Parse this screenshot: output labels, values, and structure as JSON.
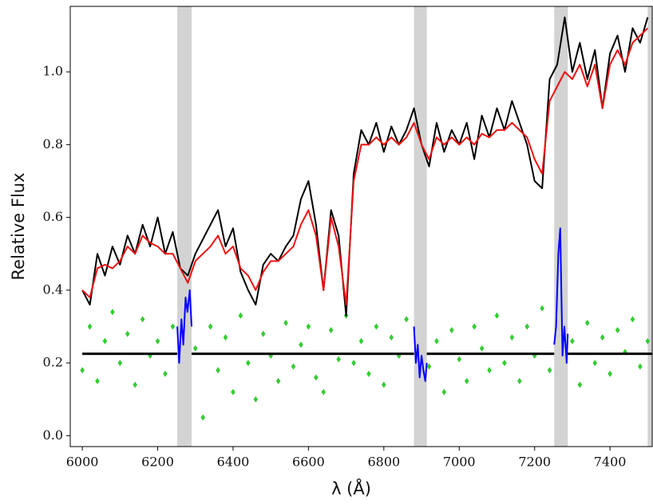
{
  "chart_data": {
    "type": "line",
    "xlabel": "λ (Å)",
    "ylabel": "Relative Flux",
    "xlim": [
      5968,
      7512
    ],
    "ylim": [
      -0.03,
      1.18
    ],
    "xticks": [
      6000,
      6200,
      6400,
      6600,
      6800,
      7000,
      7200,
      7400
    ],
    "yticks": [
      {
        "value": 0,
        "label": "0.0"
      },
      {
        "value": 0.2,
        "label": "0.2"
      },
      {
        "value": 0.4,
        "label": "0.4"
      },
      {
        "value": 0.6,
        "label": "0.6"
      },
      {
        "value": 0.8,
        "label": "0.8"
      },
      {
        "value": 1,
        "label": "1.0"
      }
    ],
    "shaded_regions": [
      [
        6252,
        6290
      ],
      [
        6880,
        6914
      ],
      [
        7252,
        7288
      ],
      [
        7500,
        7512
      ]
    ],
    "shade_color": "#d3d3d3",
    "x": [
      6000,
      6020,
      6040,
      6060,
      6080,
      6100,
      6120,
      6140,
      6160,
      6180,
      6200,
      6220,
      6240,
      6260,
      6280,
      6300,
      6320,
      6340,
      6360,
      6380,
      6400,
      6420,
      6440,
      6460,
      6480,
      6500,
      6520,
      6540,
      6560,
      6580,
      6600,
      6620,
      6640,
      6660,
      6680,
      6700,
      6720,
      6740,
      6760,
      6780,
      6800,
      6820,
      6840,
      6860,
      6880,
      6900,
      6920,
      6940,
      6960,
      6980,
      7000,
      7020,
      7040,
      7060,
      7080,
      7100,
      7120,
      7140,
      7160,
      7180,
      7200,
      7220,
      7240,
      7260,
      7280,
      7300,
      7320,
      7340,
      7360,
      7380,
      7400,
      7420,
      7440,
      7460,
      7480,
      7500
    ],
    "series": [
      {
        "style": "scatter",
        "color": "#33cc33",
        "values": [
          0.18,
          0.3,
          0.15,
          0.26,
          0.34,
          0.2,
          0.28,
          0.14,
          0.32,
          0.22,
          0.26,
          0.17,
          0.3,
          null,
          null,
          0.24,
          0.05,
          0.3,
          0.18,
          0.27,
          0.12,
          0.33,
          0.2,
          0.1,
          0.28,
          0.22,
          0.15,
          0.31,
          0.19,
          0.25,
          0.3,
          0.16,
          0.12,
          0.29,
          0.21,
          0.33,
          0.2,
          0.26,
          0.17,
          0.3,
          0.14,
          0.27,
          0.22,
          0.32,
          null,
          null,
          0.19,
          0.26,
          0.12,
          0.29,
          0.21,
          0.15,
          0.3,
          0.24,
          0.18,
          0.33,
          0.2,
          0.27,
          0.15,
          0.3,
          0.22,
          0.35,
          0.18,
          null,
          null,
          0.26,
          0.14,
          0.31,
          0.2,
          0.27,
          0.17,
          0.29,
          0.23,
          0.32,
          0.19,
          0.26
        ]
      },
      {
        "style": "line",
        "color": "#000000",
        "values": [
          0.4,
          0.36,
          0.5,
          0.44,
          0.52,
          0.47,
          0.55,
          0.5,
          0.58,
          0.52,
          0.6,
          0.5,
          0.56,
          0.46,
          0.44,
          0.5,
          0.54,
          0.58,
          0.62,
          0.52,
          0.57,
          0.45,
          0.4,
          0.36,
          0.47,
          0.5,
          0.48,
          0.52,
          0.55,
          0.65,
          0.7,
          0.58,
          0.4,
          0.62,
          0.55,
          0.33,
          0.72,
          0.84,
          0.8,
          0.86,
          0.78,
          0.85,
          0.8,
          0.84,
          0.9,
          0.8,
          0.74,
          0.86,
          0.78,
          0.84,
          0.8,
          0.86,
          0.76,
          0.88,
          0.82,
          0.9,
          0.84,
          0.92,
          0.86,
          0.8,
          0.7,
          0.68,
          0.98,
          1.02,
          1.15,
          1.0,
          1.08,
          0.98,
          1.06,
          0.9,
          1.05,
          1.1,
          1.0,
          1.12,
          1.08,
          1.15
        ]
      },
      {
        "style": "line",
        "color": "#ee1111",
        "values": [
          0.4,
          0.38,
          0.46,
          0.47,
          0.46,
          0.48,
          0.52,
          0.5,
          0.55,
          0.53,
          0.52,
          0.5,
          0.5,
          0.46,
          0.42,
          0.48,
          0.5,
          0.52,
          0.55,
          0.5,
          0.52,
          0.46,
          0.44,
          0.4,
          0.45,
          0.48,
          0.48,
          0.5,
          0.52,
          0.58,
          0.62,
          0.55,
          0.4,
          0.6,
          0.52,
          0.36,
          0.7,
          0.8,
          0.8,
          0.82,
          0.8,
          0.82,
          0.8,
          0.82,
          0.86,
          0.8,
          0.76,
          0.82,
          0.8,
          0.82,
          0.8,
          0.82,
          0.8,
          0.83,
          0.82,
          0.84,
          0.84,
          0.86,
          0.84,
          0.82,
          0.76,
          0.72,
          0.92,
          0.96,
          1.0,
          0.98,
          1.02,
          0.96,
          1.02,
          0.9,
          1.02,
          1.06,
          1.02,
          1.08,
          1.1,
          1.12
        ]
      },
      {
        "style": "line",
        "color": "#0000ff",
        "x": [
          6252,
          6257,
          6263,
          6268,
          6274,
          6279,
          6285,
          6290,
          6500,
          6880,
          6885,
          6890,
          6895,
          6900,
          6905,
          6910,
          6914,
          7100,
          7252,
          7257,
          7263,
          7268,
          7274,
          7279,
          7285,
          7288
        ],
        "values": [
          0.3,
          0.2,
          0.32,
          0.25,
          0.38,
          0.34,
          0.4,
          0.3,
          null,
          0.3,
          0.2,
          0.25,
          0.16,
          0.22,
          0.18,
          0.15,
          0.2,
          null,
          0.25,
          0.3,
          0.5,
          0.57,
          0.22,
          0.3,
          0.2,
          0.28
        ]
      },
      {
        "style": "line",
        "color": "#000000",
        "width": 3,
        "x": [
          6000,
          6252,
          6271,
          6290,
          6880,
          6897,
          6914,
          7252,
          7270,
          7288,
          7512
        ],
        "values": [
          0.225,
          0.225,
          null,
          0.225,
          0.225,
          null,
          0.225,
          0.225,
          null,
          0.225,
          0.225
        ]
      }
    ]
  }
}
